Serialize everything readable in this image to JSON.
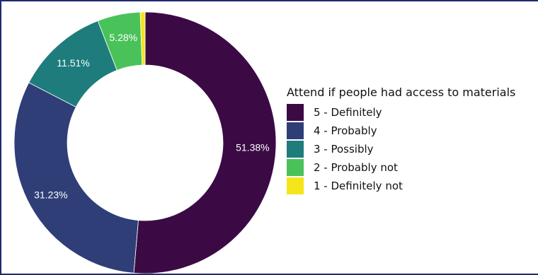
{
  "chart_data": {
    "type": "pie",
    "donut": true,
    "legend_title": "Attend if people had access to materials",
    "legend_position": "right",
    "slices": [
      {
        "label": "5 - Definitely",
        "value": 51.38,
        "value_label": "51.38%",
        "color": "#3b0a45"
      },
      {
        "label": "4 - Probably",
        "value": 31.23,
        "value_label": "31.23%",
        "color": "#2f3e77"
      },
      {
        "label": "3 - Possibly",
        "value": 11.51,
        "value_label": "11.51%",
        "color": "#1e7c7c"
      },
      {
        "label": "2 - Probably not",
        "value": 5.28,
        "value_label": "5.28%",
        "color": "#4ac25a"
      },
      {
        "label": "1 - Definitely not",
        "value": 0.6,
        "value_label": "",
        "color": "#f5e51b"
      }
    ],
    "slice_border_color": "#ffffff",
    "direction": "clockwise from top"
  }
}
